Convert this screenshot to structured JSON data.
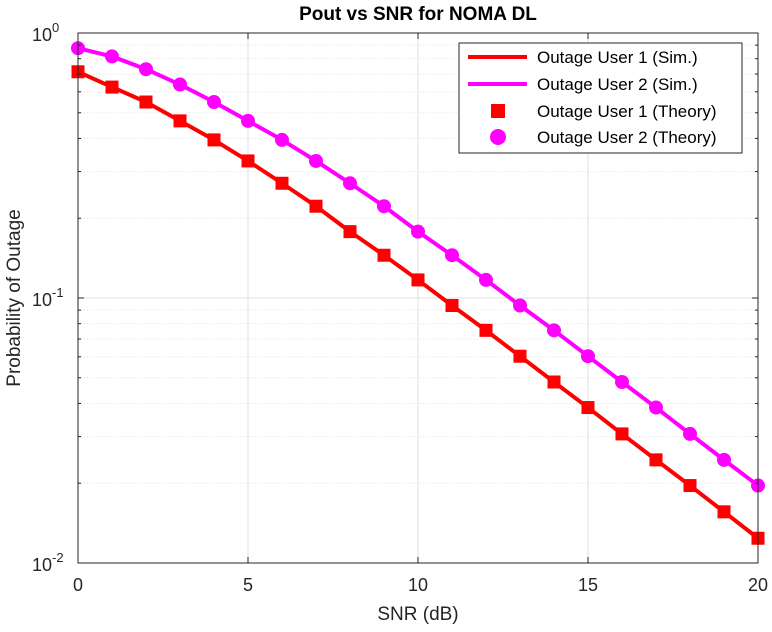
{
  "chart_data": {
    "type": "line",
    "title": "Pout vs SNR for NOMA DL",
    "xlabel": "SNR (dB)",
    "ylabel": "Probability of Outage",
    "xlim": [
      0,
      20
    ],
    "ylim": [
      0.01,
      1
    ],
    "yscale": "log",
    "grid": true,
    "minor_grid": true,
    "legend_position": "top-right",
    "xticks": [
      0,
      5,
      10,
      15,
      20
    ],
    "xtick_labels": [
      "0",
      "5",
      "10",
      "15",
      "20"
    ],
    "yticks": [
      0.01,
      0.1,
      1
    ],
    "ytick_labels": [
      {
        "base": "10",
        "exp": "-2"
      },
      {
        "base": "10",
        "exp": "-1"
      },
      {
        "base": "10",
        "exp": "0"
      }
    ],
    "x": [
      0,
      1,
      2,
      3,
      4,
      5,
      6,
      7,
      8,
      9,
      10,
      11,
      12,
      13,
      14,
      15,
      16,
      17,
      18,
      19,
      20
    ],
    "series": [
      {
        "name": "Outage User 1 (Sim.)",
        "style": "line",
        "color": "#ff0000",
        "values": [
          0.714,
          0.625,
          0.549,
          0.466,
          0.395,
          0.329,
          0.271,
          0.222,
          0.178,
          0.145,
          0.117,
          0.0937,
          0.0755,
          0.0603,
          0.0482,
          0.0386,
          0.0307,
          0.0245,
          0.0196,
          0.0156,
          0.0124
        ]
      },
      {
        "name": "Outage User 2 (Sim.)",
        "style": "line",
        "color": "#ff00ff",
        "values": [
          0.876,
          0.816,
          0.73,
          0.639,
          0.549,
          0.466,
          0.395,
          0.329,
          0.271,
          0.222,
          0.178,
          0.145,
          0.117,
          0.0937,
          0.0755,
          0.0603,
          0.0482,
          0.0386,
          0.0307,
          0.0245,
          0.0196
        ]
      },
      {
        "name": "Outage User 1 (Theory)",
        "style": "square",
        "color": "#ff0000",
        "values": [
          0.714,
          0.625,
          0.549,
          0.466,
          0.395,
          0.329,
          0.271,
          0.222,
          0.178,
          0.145,
          0.117,
          0.0937,
          0.0755,
          0.0603,
          0.0482,
          0.0386,
          0.0307,
          0.0245,
          0.0196,
          0.0156,
          0.0124
        ]
      },
      {
        "name": "Outage User 2 (Theory)",
        "style": "circle",
        "color": "#ff00ff",
        "values": [
          0.876,
          0.816,
          0.73,
          0.639,
          0.549,
          0.466,
          0.395,
          0.329,
          0.271,
          0.222,
          0.178,
          0.145,
          0.117,
          0.0937,
          0.0755,
          0.0603,
          0.0482,
          0.0386,
          0.0307,
          0.0245,
          0.0196
        ]
      }
    ]
  }
}
